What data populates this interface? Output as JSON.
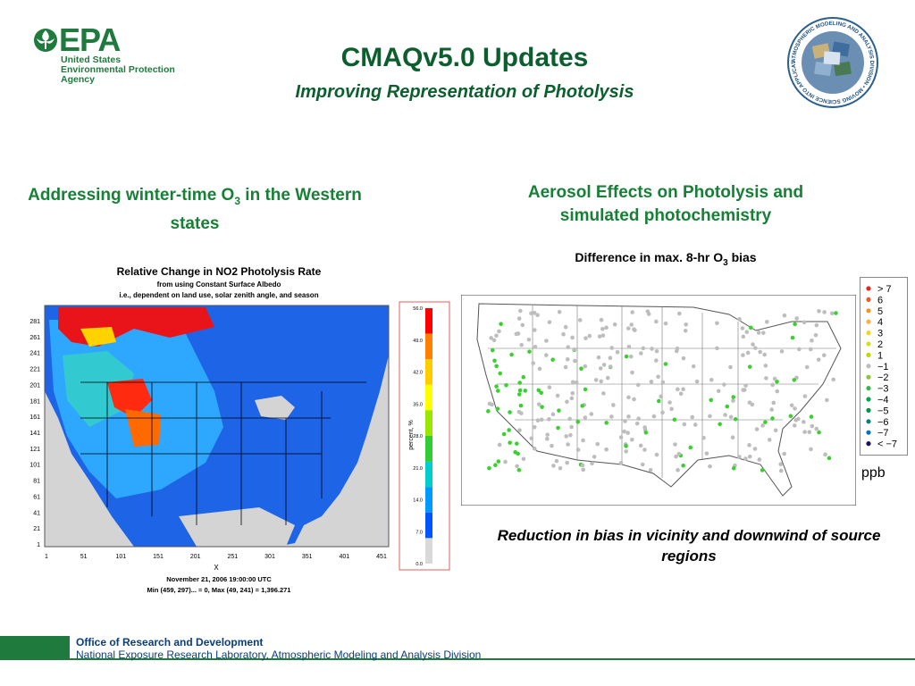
{
  "logo": {
    "word": "EPA",
    "line1": "United States",
    "line2": "Environmental Protection",
    "line3": "Agency"
  },
  "title": "CMAQv5.0 Updates",
  "subtitle": "Improving Representation of Photolysis",
  "seal": {
    "text": "ATMOSPHERIC MODELING AND ANALYSIS DIVISION • MOVING SCIENCE INTO APPLICATIONS •"
  },
  "left_section": {
    "heading_pre": "Addressing winter-time O",
    "heading_sub": "3",
    "heading_post": " in the Western states",
    "map": {
      "title": "Relative Change in NO2 Photolysis Rate",
      "sub1": "from using Constant Surface Albedo",
      "sub2": "i.e., dependent on land use, solar zenith angle, and season",
      "time": "November 21, 2006 19:00:00 UTC",
      "minmax": "Min (459, 297)... = 0, Max (49, 241) = 1,396.271",
      "xlabel": "X",
      "y_ticks": [
        "281",
        "261",
        "241",
        "221",
        "201",
        "181",
        "161",
        "141",
        "121",
        "101",
        "81",
        "61",
        "41",
        "21",
        "1"
      ],
      "x_ticks": [
        "1",
        "51",
        "101",
        "151",
        "201",
        "251",
        "301",
        "351",
        "401",
        "451"
      ]
    },
    "colorbar": {
      "label": "percent, %",
      "ticks": [
        "56.0",
        "49.0",
        "42.0",
        "35.0",
        "28.0",
        "21.0",
        "14.0",
        "7.0",
        "0.0"
      ],
      "colors": [
        "#ff0000",
        "#ff8000",
        "#ffcc00",
        "#ffff00",
        "#99e600",
        "#33cc33",
        "#00cccc",
        "#0099ff",
        "#0055ff",
        "#d9d9d9"
      ]
    }
  },
  "right_section": {
    "heading": "Aerosol Effects on Photolysis and simulated photochemistry",
    "diff_pre": "Difference in max. 8-hr O",
    "diff_sub": "3",
    "diff_post": " bias",
    "legend": [
      {
        "label": "> 7",
        "color": "#e6261f"
      },
      {
        "label": "6",
        "color": "#f05a28"
      },
      {
        "label": "5",
        "color": "#f7941d"
      },
      {
        "label": "4",
        "color": "#fbb040"
      },
      {
        "label": "3",
        "color": "#fcd116"
      },
      {
        "label": "2",
        "color": "#d7df23"
      },
      {
        "label": "1",
        "color": "#c8d400"
      },
      {
        "label": "−1",
        "color": "#bdbdbd"
      },
      {
        "label": "−2",
        "color": "#8cc63f"
      },
      {
        "label": "−3",
        "color": "#39b54a"
      },
      {
        "label": "−4",
        "color": "#00a651"
      },
      {
        "label": "−5",
        "color": "#009444"
      },
      {
        "label": "−6",
        "color": "#00827f"
      },
      {
        "label": "−7",
        "color": "#0072bc"
      },
      {
        "label": "< −7",
        "color": "#1b1464"
      }
    ],
    "unit": "ppb",
    "caption": "Reduction in bias in vicinity and downwind of source regions"
  },
  "footer": {
    "office": "Office of Research and Development",
    "lab": "National Exposure Research Laboratory, Atmospheric Modeling and Analysis Division"
  }
}
